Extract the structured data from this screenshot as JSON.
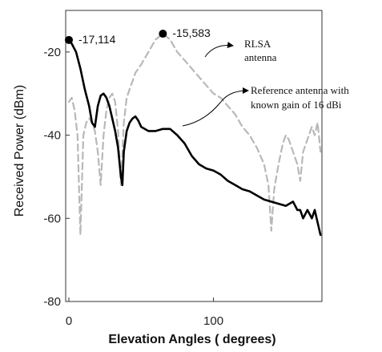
{
  "chart_data": {
    "type": "line",
    "xlabel": "Elevation Angles ( degrees)",
    "ylabel": "Received Power (dBm)",
    "xlim": [
      0,
      175
    ],
    "ylim": [
      -80,
      -10
    ],
    "x_ticks": [
      "0",
      "100"
    ],
    "y_ticks": [
      "-20",
      "-40",
      "-60",
      "-80"
    ],
    "grid": false,
    "series": [
      {
        "name": "RLSA antenna",
        "style": "dashed",
        "color": "#b8b8b8",
        "x": [
          0,
          2,
          4,
          6,
          8,
          10,
          12,
          14,
          16,
          18,
          20,
          22,
          24,
          26,
          28,
          30,
          32,
          34,
          36,
          38,
          40,
          42,
          44,
          46,
          48,
          50,
          55,
          60,
          65,
          70,
          75,
          80,
          85,
          90,
          95,
          100,
          105,
          110,
          115,
          120,
          125,
          130,
          135,
          138,
          140,
          142,
          145,
          148,
          150,
          152,
          155,
          158,
          160,
          162,
          165,
          168,
          170,
          172,
          174
        ],
        "y": [
          -32,
          -31,
          -34,
          -40,
          -64,
          -40,
          -37,
          -36,
          -37,
          -39,
          -44,
          -52,
          -40,
          -34,
          -31,
          -30,
          -32,
          -39,
          -52,
          -37,
          -31,
          -29,
          -27,
          -25,
          -24,
          -23,
          -20,
          -17,
          -15.6,
          -17,
          -20,
          -22,
          -24,
          -26,
          -28,
          -30,
          -31,
          -33,
          -35,
          -38,
          -40,
          -43,
          -47,
          -52,
          -63,
          -53,
          -47,
          -42,
          -40,
          -41,
          -44,
          -47,
          -51,
          -44,
          -41,
          -38,
          -40,
          -37,
          -44
        ]
      },
      {
        "name": "Reference antenna with known gain of 16 dBi",
        "style": "solid",
        "color": "#000000",
        "x": [
          0,
          2,
          5,
          8,
          11,
          14,
          16,
          18,
          20,
          22,
          24,
          26,
          28,
          30,
          32,
          34,
          36,
          37,
          38,
          40,
          42,
          44,
          46,
          48,
          50,
          55,
          60,
          65,
          70,
          75,
          80,
          85,
          90,
          95,
          100,
          105,
          110,
          115,
          120,
          125,
          130,
          135,
          140,
          145,
          150,
          155,
          158,
          160,
          162,
          165,
          168,
          170,
          172,
          174
        ],
        "y": [
          -17.1,
          -18,
          -20,
          -24,
          -29,
          -33,
          -37,
          -38,
          -33,
          -30.5,
          -30,
          -31,
          -33,
          -36,
          -39,
          -43,
          -50,
          -52,
          -44,
          -39,
          -37,
          -36,
          -35.5,
          -36.5,
          -38,
          -39,
          -39,
          -38.5,
          -38.5,
          -40,
          -42,
          -45,
          -47,
          -48,
          -48.5,
          -49.5,
          -51,
          -52,
          -53,
          -53.5,
          -54.5,
          -55.5,
          -56,
          -56.5,
          -57,
          -56,
          -58,
          -58,
          -60,
          -58,
          -60,
          -58,
          -61,
          -64
        ]
      }
    ],
    "annotations": [
      {
        "label": "-17,114",
        "x": 0,
        "y": -17.1
      },
      {
        "label": "-15,583",
        "x": 65,
        "y": -15.6
      }
    ],
    "legend_callouts": [
      "RLSA",
      "antenna",
      "Reference antenna with",
      "known gain of 16 dBi"
    ]
  }
}
